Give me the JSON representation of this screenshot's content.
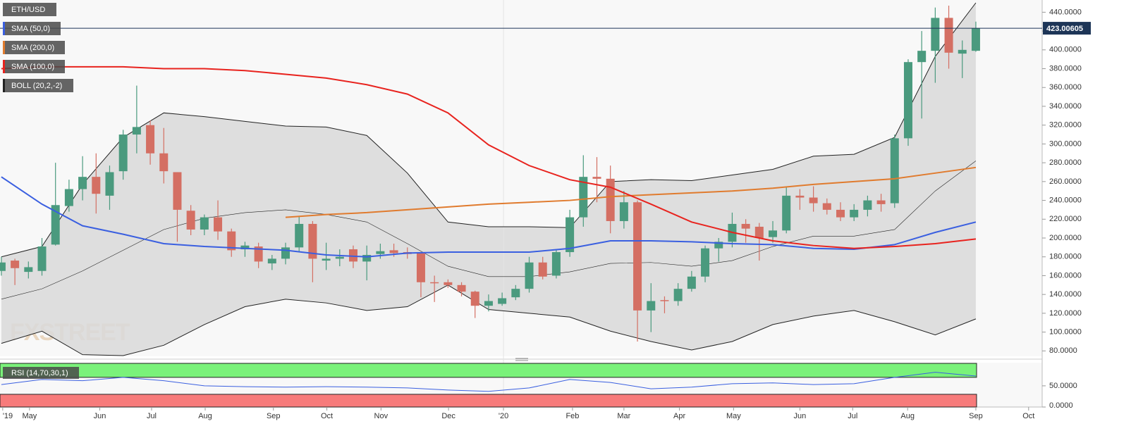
{
  "chart_data": {
    "type": "candlestick",
    "legend": [
      "ETH/USD"
    ],
    "watermark": "FXSTREET",
    "name": "ETH/USD",
    "color_up": "#4a9a7e",
    "color_down": "#d46f63",
    "open": [
      165,
      176,
      164,
      165,
      193,
      234,
      252,
      265,
      245,
      271,
      310,
      320,
      290,
      270,
      229,
      209,
      222,
      207,
      188,
      191,
      173,
      178,
      190,
      215,
      176,
      178,
      188,
      175,
      183,
      187,
      185,
      184,
      153,
      153,
      150,
      143,
      128,
      130,
      137,
      146,
      174,
      160,
      185,
      222,
      265,
      263,
      218,
      238,
      123,
      134,
      133,
      146,
      159,
      189,
      196,
      215,
      212,
      201,
      208,
      245,
      243,
      237,
      230,
      222,
      230,
      240,
      237,
      306,
      387,
      399,
      434,
      396,
      399
    ],
    "high": [
      180,
      178,
      175,
      200,
      280,
      262,
      287,
      290,
      277,
      315,
      362,
      325,
      317,
      270,
      235,
      225,
      240,
      210,
      196,
      195,
      182,
      195,
      223,
      218,
      195,
      188,
      192,
      192,
      194,
      194,
      190,
      185,
      160,
      156,
      153,
      144,
      140,
      142,
      150,
      180,
      180,
      187,
      230,
      288,
      286,
      277,
      250,
      240,
      152,
      138,
      152,
      165,
      192,
      200,
      227,
      220,
      216,
      218,
      255,
      252,
      255,
      242,
      238,
      236,
      245,
      247,
      310,
      390,
      420,
      445,
      447,
      410,
      430
    ],
    "low": [
      160,
      150,
      157,
      160,
      192,
      228,
      240,
      226,
      230,
      262,
      290,
      278,
      258,
      196,
      203,
      203,
      198,
      180,
      180,
      168,
      166,
      172,
      185,
      153,
      166,
      170,
      168,
      155,
      178,
      180,
      178,
      137,
      132,
      147,
      138,
      115,
      122,
      128,
      134,
      142,
      156,
      157,
      180,
      212,
      238,
      205,
      210,
      90,
      100,
      120,
      128,
      143,
      153,
      175,
      190,
      195,
      176,
      195,
      205,
      230,
      228,
      225,
      218,
      218,
      223,
      228,
      232,
      298,
      327,
      365,
      380,
      370,
      398
    ],
    "close": [
      174,
      168,
      169,
      191,
      235,
      252,
      265,
      247,
      270,
      310,
      318,
      290,
      271,
      230,
      209,
      222,
      207,
      187,
      192,
      175,
      178,
      190,
      215,
      178,
      178,
      180,
      175,
      182,
      186,
      184,
      183,
      153,
      152,
      150,
      143,
      128,
      133,
      136,
      146,
      174,
      159,
      185,
      222,
      265,
      263,
      218,
      238,
      123,
      133,
      133,
      146,
      159,
      189,
      196,
      215,
      210,
      200,
      208,
      245,
      243,
      237,
      230,
      222,
      230,
      240,
      236,
      306,
      387,
      399,
      434,
      397,
      400,
      423
    ],
    "last_price": 423.00605,
    "last_price_color": "#1d3557",
    "xlim": [
      -0.1,
      76.9
    ],
    "xticks": [
      {
        "value": 0.1,
        "label": "'19"
      },
      {
        "value": 2.08,
        "label": "May"
      },
      {
        "value": 7.27,
        "label": "Jun"
      },
      {
        "value": 11.1,
        "label": "Jul"
      },
      {
        "value": 15.06,
        "label": "Aug"
      },
      {
        "value": 20.1,
        "label": "Sep"
      },
      {
        "value": 24.05,
        "label": "Oct"
      },
      {
        "value": 28.05,
        "label": "Nov"
      },
      {
        "value": 33.04,
        "label": "Dec"
      },
      {
        "value": 37.1,
        "label": "'20"
      },
      {
        "value": 42.2,
        "label": "Feb"
      },
      {
        "value": 46.0,
        "label": "Mar"
      },
      {
        "value": 50.1,
        "label": "Apr"
      },
      {
        "value": 54.1,
        "label": "May"
      },
      {
        "value": 59.0,
        "label": "Jun"
      },
      {
        "value": 62.9,
        "label": "Jul"
      },
      {
        "value": 66.96,
        "label": "Aug"
      },
      {
        "value": 72,
        "label": "Sep"
      },
      {
        "value": 75.9,
        "label": "Oct"
      }
    ],
    "ylim": [
      75,
      453
    ],
    "yticks": [
      {
        "value": 80,
        "label": "80.0000"
      },
      {
        "value": 100,
        "label": "100.0000"
      },
      {
        "value": 120,
        "label": "120.0000"
      },
      {
        "value": 140,
        "label": "140.0000"
      },
      {
        "value": 160,
        "label": "160.0000"
      },
      {
        "value": 180,
        "label": "180.0000"
      },
      {
        "value": 200,
        "label": "200.0000"
      },
      {
        "value": 220,
        "label": "220.0000"
      },
      {
        "value": 240,
        "label": "240.0000"
      },
      {
        "value": 260,
        "label": "260.0000"
      },
      {
        "value": 280,
        "label": "280.0000"
      },
      {
        "value": 300,
        "label": "300.0000"
      },
      {
        "value": 320,
        "label": "320.0000"
      },
      {
        "value": 340,
        "label": "340.0000"
      },
      {
        "value": 360,
        "label": "360.0000"
      },
      {
        "value": 380,
        "label": "380.0000"
      },
      {
        "value": 400,
        "label": "400.0000"
      },
      {
        "value": 420,
        "label": "420.0000"
      },
      {
        "value": 440,
        "label": "440.0000"
      }
    ],
    "line_x": [
      0,
      3,
      6,
      9,
      12,
      15,
      18,
      21,
      24,
      27,
      30,
      33,
      36,
      39,
      42,
      45,
      48,
      51,
      54,
      57,
      60,
      63,
      66,
      69,
      72
    ],
    "bollinger": {
      "name": "BOLL (20,2,-2)",
      "color": "#222222",
      "fill": "#d9d9d9",
      "upper": [
        180,
        191,
        257,
        307,
        333,
        329,
        324,
        319,
        318,
        309,
        269,
        217,
        212,
        212,
        211,
        260,
        262,
        261,
        267,
        273,
        287,
        289,
        307,
        393,
        450
      ],
      "middle": [
        135,
        146,
        165,
        187,
        209,
        221,
        227,
        230,
        225,
        217,
        194,
        170,
        159,
        159,
        164,
        173,
        174,
        170,
        176,
        191,
        202,
        202,
        209,
        250,
        282
      ],
      "lower": [
        88,
        101,
        76,
        75,
        86,
        108,
        127,
        135,
        131,
        123,
        127,
        150,
        124,
        120,
        116,
        101,
        90,
        81,
        90,
        108,
        117,
        123,
        111,
        97,
        114
      ]
    },
    "lines": [
      {
        "name": "SMA (50,0)",
        "color": "#3a5fe0",
        "values": [
          265,
          236,
          213,
          204,
          194,
          191,
          189,
          187,
          182,
          180,
          184,
          185,
          185,
          185,
          189,
          197,
          197,
          196,
          194,
          193,
          189,
          188,
          193,
          206,
          217
        ]
      },
      {
        "name": "SMA (200,0)",
        "color": "#e07b2e",
        "values": [
          null,
          null,
          null,
          null,
          null,
          null,
          null,
          222,
          225,
          227,
          230,
          233,
          236,
          238,
          240,
          244,
          246,
          248,
          250,
          253,
          257,
          260,
          263,
          269,
          275
        ]
      },
      {
        "name": "SMA (100,0)",
        "color": "#e8231e",
        "values": [
          380,
          382,
          382,
          382,
          380,
          380,
          378,
          374,
          370,
          363,
          353,
          333,
          299,
          277,
          262,
          254,
          236,
          217,
          206,
          197,
          192,
          189,
          191,
          194,
          199
        ]
      }
    ],
    "rsi": {
      "name": "RSI (14,70,30,1)",
      "color": "#3a5fe0",
      "upper": 70,
      "lower": 30,
      "upper_color": "#7af27a",
      "lower_color": "#f77b7b",
      "values": [
        53,
        65,
        62,
        70,
        62,
        50,
        48,
        47,
        48,
        47,
        45,
        40,
        37,
        45,
        65,
        58,
        43,
        47,
        55,
        57,
        53,
        55,
        70,
        82,
        73
      ],
      "ylim": [
        0,
        103
      ],
      "yticks": [
        {
          "value": 0,
          "label": "0.0000"
        },
        {
          "value": 50,
          "label": "50.0000"
        }
      ]
    }
  }
}
